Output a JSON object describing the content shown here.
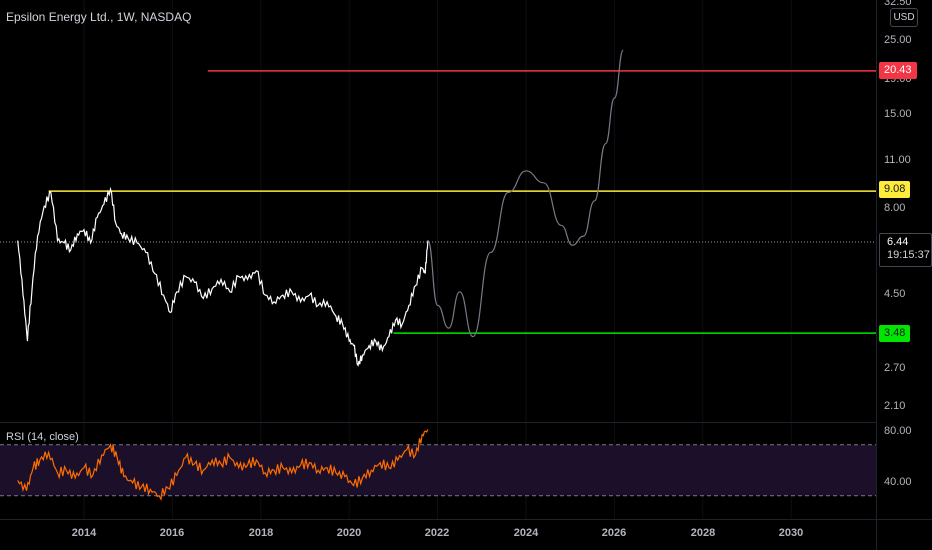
{
  "header": {
    "title": "Epsilon Energy Ltd., 1W, NASDAQ"
  },
  "rsi_pane": {
    "label": "RSI (14, close)"
  },
  "price_axis": {
    "currency": "USD",
    "ticks": [
      "32.50",
      "25.00",
      "19.00",
      "15.00",
      "11.00",
      "8.00",
      "4.50",
      "2.70",
      "2.10"
    ]
  },
  "rsi_axis": {
    "ticks": [
      "80.00",
      "40.00"
    ]
  },
  "time_axis": {
    "ticks": [
      "2014",
      "2016",
      "2018",
      "2020",
      "2022",
      "2024",
      "2026",
      "2028",
      "2030"
    ]
  },
  "price_tags": {
    "red": "20.43",
    "yellow": "9.08",
    "green": "3.48",
    "last_price": "6.44",
    "countdown": "19:15:37"
  },
  "colors": {
    "price_line": "#ffffff",
    "projection": "#787b86",
    "red_level": "#f23645",
    "yellow_level": "#ffeb3b",
    "green_level": "#00e600",
    "rsi_line": "#ff6d00",
    "rsi_band": "#1b0f2a"
  },
  "chart_data": [
    {
      "type": "line",
      "title": "Epsilon Energy Ltd., 1W, NASDAQ",
      "scale": "log",
      "ylim": [
        2.0,
        32.5
      ],
      "xlim": [
        2012.5,
        2031.5
      ],
      "horizontal_levels": [
        {
          "value": 20.43,
          "from": 2016.8,
          "color": "red"
        },
        {
          "value": 9.08,
          "from": 2013.2,
          "color": "yellow"
        },
        {
          "value": 3.48,
          "from": 2021.0,
          "color": "green"
        }
      ],
      "last_price": 6.44,
      "series": [
        {
          "x": [
            2012.5,
            2012.62,
            2012.72,
            2012.82,
            2012.95,
            2013.1,
            2013.25,
            2013.4,
            2013.55,
            2013.7,
            2013.85,
            2014.0,
            2014.15,
            2014.3,
            2014.45,
            2014.6,
            2014.72,
            2014.85,
            2015.0,
            2015.2,
            2015.4,
            2015.6,
            2015.8,
            2015.95,
            2016.1,
            2016.3,
            2016.5,
            2016.7,
            2016.9,
            2017.1,
            2017.3,
            2017.5,
            2017.7,
            2017.9,
            2018.1,
            2018.3,
            2018.5,
            2018.7,
            2018.9,
            2019.1,
            2019.3,
            2019.5,
            2019.7,
            2019.85,
            2020.0,
            2020.1,
            2020.2,
            2020.3,
            2020.45,
            2020.6,
            2020.75,
            2020.9,
            2021.05,
            2021.2,
            2021.35,
            2021.5,
            2021.65,
            2021.72,
            2021.78
          ],
          "values": [
            6.5,
            4.5,
            3.3,
            4.6,
            6.7,
            8.2,
            9.0,
            6.5,
            6.4,
            6.1,
            6.8,
            7.0,
            6.4,
            7.6,
            8.3,
            9.2,
            7.3,
            6.8,
            6.6,
            6.4,
            6.0,
            5.2,
            4.5,
            4.0,
            4.6,
            5.1,
            4.9,
            4.4,
            4.7,
            5.0,
            4.6,
            5.1,
            5.0,
            5.3,
            4.5,
            4.3,
            4.5,
            4.6,
            4.3,
            4.5,
            4.2,
            4.3,
            3.9,
            3.7,
            3.3,
            3.2,
            2.8,
            3.0,
            3.2,
            3.3,
            3.1,
            3.4,
            3.8,
            3.7,
            4.2,
            4.8,
            5.4,
            5.2,
            6.5
          ]
        },
        {
          "name": "",
          "x": [
            2021.78,
            2022.0,
            2022.25,
            2022.5,
            2022.8,
            2023.2,
            2023.6,
            2024.0,
            2024.4,
            2024.8,
            2025.05,
            2025.3,
            2025.55,
            2025.8,
            2026.0,
            2026.2
          ],
          "values": [
            6.5,
            4.2,
            3.6,
            4.6,
            3.4,
            6.0,
            9.0,
            10.4,
            9.6,
            7.2,
            6.3,
            6.7,
            8.5,
            12.5,
            17.0,
            23.5
          ]
        }
      ]
    },
    {
      "type": "line",
      "title": "RSI (14, close)",
      "ylim": [
        20,
        90
      ],
      "series": [
        {
          "x": [
            2012.5,
            2012.7,
            2012.85,
            2013.0,
            2013.2,
            2013.4,
            2013.6,
            2013.8,
            2014.0,
            2014.2,
            2014.4,
            2014.6,
            2014.75,
            2014.9,
            2015.1,
            2015.3,
            2015.5,
            2015.7,
            2015.9,
            2016.1,
            2016.3,
            2016.5,
            2016.7,
            2016.9,
            2017.1,
            2017.3,
            2017.5,
            2017.7,
            2017.9,
            2018.1,
            2018.3,
            2018.5,
            2018.7,
            2018.9,
            2019.1,
            2019.3,
            2019.5,
            2019.7,
            2019.9,
            2020.1,
            2020.3,
            2020.5,
            2020.7,
            2020.9,
            2021.1,
            2021.3,
            2021.5,
            2021.65,
            2021.78
          ],
          "values": [
            42,
            34,
            52,
            58,
            64,
            48,
            50,
            44,
            52,
            46,
            62,
            70,
            60,
            45,
            40,
            37,
            35,
            30,
            36,
            46,
            60,
            55,
            50,
            58,
            55,
            60,
            52,
            54,
            58,
            48,
            50,
            52,
            48,
            54,
            56,
            50,
            52,
            48,
            45,
            38,
            44,
            50,
            56,
            52,
            58,
            66,
            62,
            78,
            82
          ]
        }
      ]
    }
  ]
}
